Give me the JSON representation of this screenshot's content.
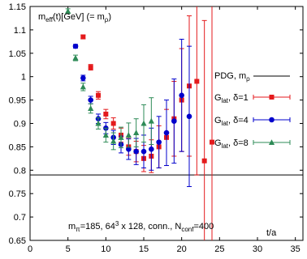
{
  "chart_data": {
    "type": "scatter",
    "title_parts": {
      "m": "m",
      "eff": "eff",
      "rest": "(t)[GeV]  (= m",
      "rho": "ρ",
      "close": ")"
    },
    "xlabel": "t/a",
    "ylabel": "",
    "xlim": [
      0,
      36
    ],
    "ylim": [
      0.65,
      1.15
    ],
    "x_ticks": [
      0,
      5,
      10,
      15,
      20,
      25,
      30,
      35
    ],
    "y_ticks": [
      0.65,
      0.7,
      0.75,
      0.8,
      0.85,
      0.9,
      0.95,
      1,
      1.05,
      1.1,
      1.15
    ],
    "y_tick_labels": [
      "0.65",
      "0.7",
      "0.75",
      "0.8",
      "0.85",
      "0.9",
      "0.95",
      "1",
      "1.05",
      "1.1",
      "1.15"
    ],
    "grid": false,
    "legend_position": "right",
    "annotation_parts": {
      "m": "m",
      "pi": "π",
      "a": "=185, 64",
      "cube": "3",
      "b": " x 128, conn., N",
      "conf": "conf",
      "c": "=400"
    },
    "reference_line": {
      "y": 0.79,
      "label_parts": {
        "a": "PDG, m",
        "sub": "ρ"
      },
      "color": "#000000"
    },
    "series": [
      {
        "name_parts": {
          "g": "G",
          "sub": "lat",
          "rest": ", δ=1"
        },
        "color": "#e41a1c",
        "marker": "square",
        "points": [
          [
            7,
            1.085,
            0.004
          ],
          [
            8,
            1.02,
            0.006
          ],
          [
            9,
            0.96,
            0.008
          ],
          [
            10,
            0.92,
            0.01
          ],
          [
            11,
            0.9,
            0.012
          ],
          [
            12,
            0.875,
            0.015
          ],
          [
            13,
            0.85,
            0.018
          ],
          [
            14,
            0.84,
            0.022
          ],
          [
            15,
            0.825,
            0.028
          ],
          [
            16,
            0.83,
            0.035
          ],
          [
            17,
            0.85,
            0.045
          ],
          [
            18,
            0.87,
            0.06
          ],
          [
            19,
            0.91,
            0.08
          ],
          [
            20,
            0.95,
            0.11
          ],
          [
            21,
            0.98,
            0.15
          ],
          [
            22,
            0.99,
            0.2
          ],
          [
            23,
            0.82,
            0.3
          ],
          [
            24,
            0.86,
            0.4
          ]
        ]
      },
      {
        "name_parts": {
          "g": "G",
          "sub": "lat",
          "rest": ", δ=4"
        },
        "color": "#0000cc",
        "marker": "circle",
        "points": [
          [
            6,
            1.065,
            0.004
          ],
          [
            7,
            0.997,
            0.006
          ],
          [
            8,
            0.95,
            0.008
          ],
          [
            9,
            0.91,
            0.01
          ],
          [
            10,
            0.89,
            0.012
          ],
          [
            11,
            0.87,
            0.015
          ],
          [
            12,
            0.855,
            0.018
          ],
          [
            13,
            0.845,
            0.022
          ],
          [
            14,
            0.84,
            0.028
          ],
          [
            15,
            0.84,
            0.035
          ],
          [
            16,
            0.845,
            0.045
          ],
          [
            17,
            0.86,
            0.055
          ],
          [
            18,
            0.88,
            0.07
          ],
          [
            19,
            0.905,
            0.09
          ],
          [
            20,
            0.96,
            0.12
          ],
          [
            21,
            0.915,
            0.15
          ]
        ]
      },
      {
        "name_parts": {
          "g": "G",
          "sub": "lat",
          "rest": ", δ=8"
        },
        "color": "#2e8b57",
        "marker": "triangle",
        "points": [
          [
            5,
            1.14,
            0.005
          ],
          [
            6,
            1.04,
            0.006
          ],
          [
            7,
            0.978,
            0.008
          ],
          [
            8,
            0.932,
            0.01
          ],
          [
            9,
            0.9,
            0.012
          ],
          [
            10,
            0.875,
            0.015
          ],
          [
            11,
            0.862,
            0.018
          ],
          [
            12,
            0.87,
            0.022
          ],
          [
            13,
            0.875,
            0.026
          ],
          [
            14,
            0.88,
            0.03
          ],
          [
            15,
            0.9,
            0.04
          ],
          [
            16,
            0.905,
            0.05
          ]
        ]
      }
    ]
  }
}
